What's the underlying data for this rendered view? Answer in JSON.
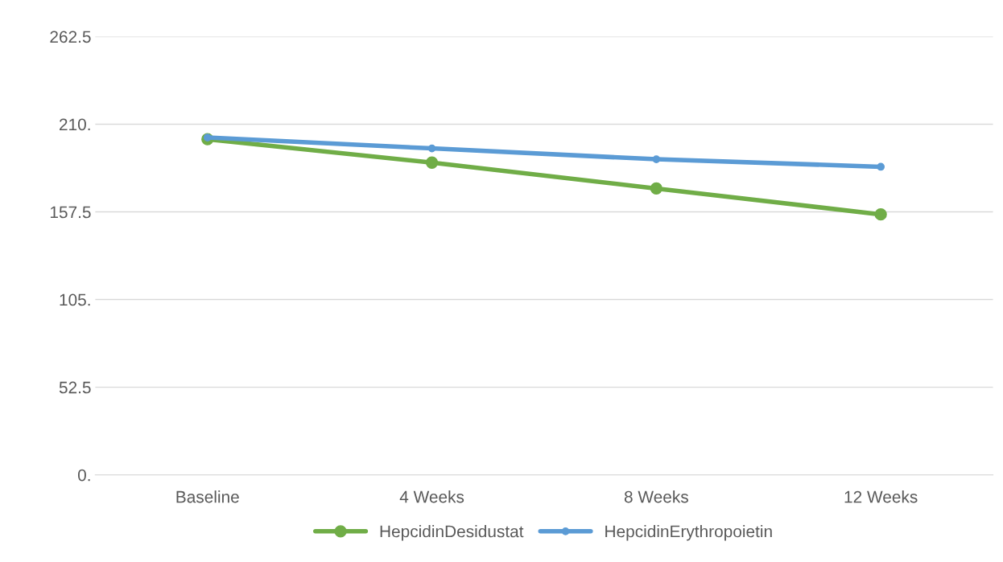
{
  "chart_data": {
    "type": "line",
    "categories": [
      "Baseline",
      "4 Weeks",
      "8 Weeks",
      "12 Weeks"
    ],
    "series": [
      {
        "name": "HepcidinDesidustat",
        "color": "#70ad47",
        "values": [
          201,
          187,
          171.5,
          156
        ]
      },
      {
        "name": "HepcidinErythropoietin",
        "color": "#5b9bd5",
        "values": [
          202,
          195.5,
          189,
          184.5
        ]
      }
    ],
    "ylim": [
      0,
      262.5
    ],
    "yticks": [
      {
        "value": 0,
        "label": "0."
      },
      52.5,
      {
        "value": 105,
        "label": "105."
      },
      157.5,
      {
        "value": 210,
        "label": "210."
      },
      262.5
    ],
    "grid": "y",
    "legend": "bottom",
    "marker": "circle",
    "line_style": "solid"
  }
}
